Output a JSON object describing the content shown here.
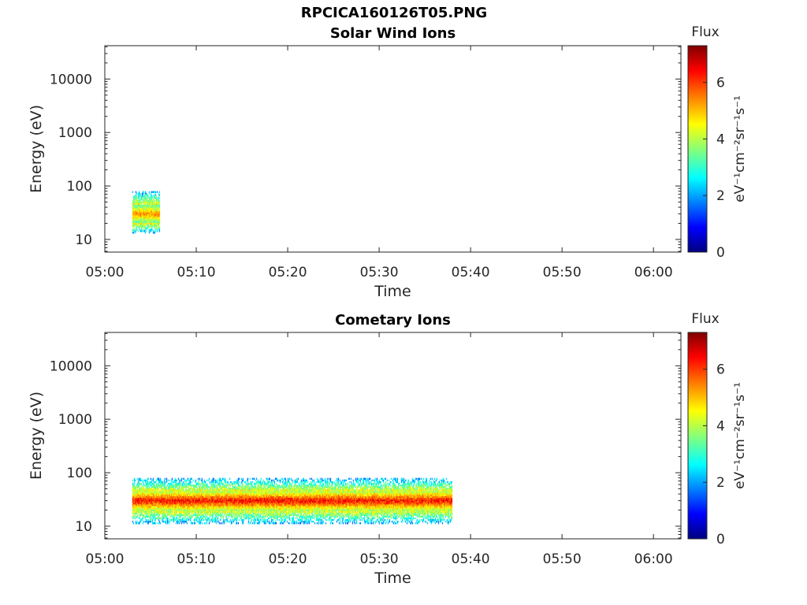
{
  "figure_title": "RPCICA160126T05.PNG",
  "chart_data": [
    {
      "type": "heatmap",
      "title": "Solar Wind Ions",
      "xlabel": "Time",
      "ylabel": "Energy (eV)",
      "x_ticks": [
        "05:00",
        "05:10",
        "05:20",
        "05:30",
        "05:40",
        "05:50",
        "06:00"
      ],
      "xlim": [
        "05:00",
        "06:03"
      ],
      "y_scale": "log",
      "y_ticks": [
        "10",
        "100",
        "1000",
        "10000"
      ],
      "ylim": [
        5.8,
        42000
      ],
      "colorbar": {
        "label": "Flux",
        "units_label": "eV⁻¹cm⁻²sr⁻¹s⁻¹",
        "ticks": [
          "0",
          "2",
          "4",
          "6"
        ],
        "range": [
          0,
          7.3
        ]
      },
      "regions": [
        {
          "t_start": "05:03",
          "t_end": "05:06",
          "core_energy_eV": [
            20,
            45
          ],
          "fringe_energy_eV": [
            13,
            80
          ],
          "peak_flux": 6.0
        }
      ]
    },
    {
      "type": "heatmap",
      "title": "Cometary Ions",
      "xlabel": "Time",
      "ylabel": "Energy (eV)",
      "x_ticks": [
        "05:00",
        "05:10",
        "05:20",
        "05:30",
        "05:40",
        "05:50",
        "06:00"
      ],
      "xlim": [
        "05:00",
        "06:03"
      ],
      "y_scale": "log",
      "y_ticks": [
        "10",
        "100",
        "1000",
        "10000"
      ],
      "ylim": [
        5.8,
        42000
      ],
      "colorbar": {
        "label": "Flux",
        "units_label": "eV⁻¹cm⁻²sr⁻¹s⁻¹",
        "ticks": [
          "0",
          "2",
          "4",
          "6"
        ],
        "range": [
          0,
          7.3
        ]
      },
      "regions": [
        {
          "t_start": "05:03",
          "t_end": "05:38",
          "core_energy_eV": [
            20,
            45
          ],
          "fringe_energy_eV": [
            11,
            80
          ],
          "peak_flux": 7.0
        }
      ]
    }
  ]
}
